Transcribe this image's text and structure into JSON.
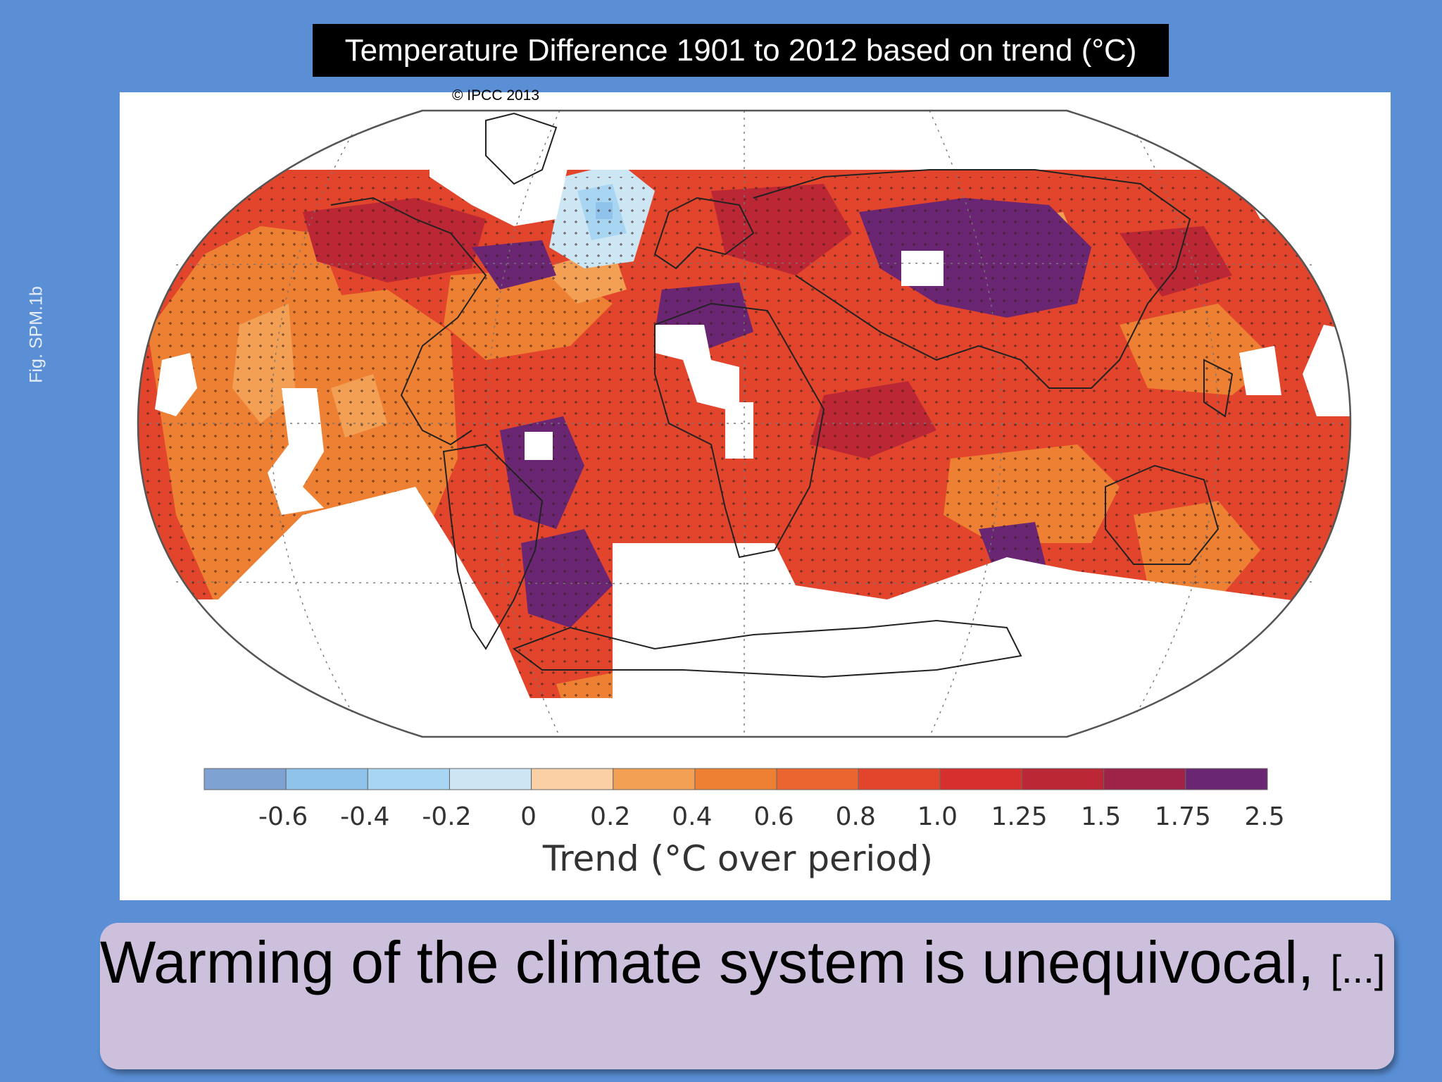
{
  "title": "Temperature Difference 1901 to 2012 based on trend (°C)",
  "side_label": "Fig. SPM.1b",
  "copyright": "© IPCC 2013",
  "legend": {
    "title": "Trend (°C over period)",
    "ticks": [
      "-0.6",
      "-0.4",
      "-0.2",
      "0",
      "0.2",
      "0.4",
      "0.6",
      "0.8",
      "1.0",
      "1.25",
      "1.5",
      "1.75",
      "2.5"
    ],
    "colors": [
      "#7ea3d3",
      "#8fc3ec",
      "#a8d5f2",
      "#cde6f4",
      "#fbd0a5",
      "#f3a054",
      "#ee8033",
      "#ea6530",
      "#e2452c",
      "#d62f2d",
      "#bb2735",
      "#9e2348",
      "#6a2673"
    ]
  },
  "quote": {
    "text": "Warming of the climate system is unequivocal,",
    "ellipsis": "[...]"
  }
}
